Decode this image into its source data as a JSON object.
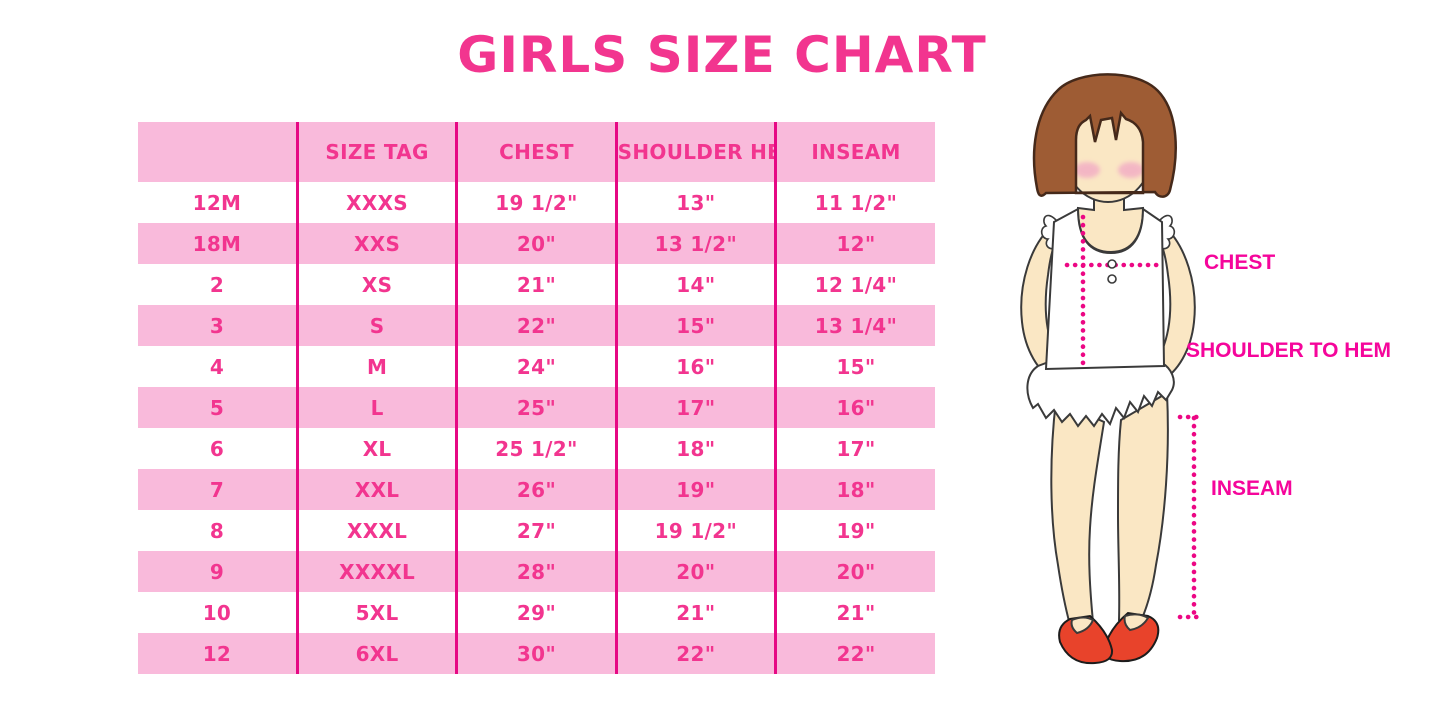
{
  "title": "GIRLS SIZE CHART",
  "chart_data": {
    "type": "table",
    "title": "GIRLS SIZE CHART",
    "columns": [
      "",
      "SIZE TAG",
      "CHEST",
      "SHOULDER HEM",
      "INSEAM"
    ],
    "rows": [
      [
        "12M",
        "XXXS",
        "19 1/2\"",
        "13\"",
        "11 1/2\""
      ],
      [
        "18M",
        "XXS",
        "20\"",
        "13 1/2\"",
        "12\""
      ],
      [
        "2",
        "XS",
        "21\"",
        "14\"",
        "12 1/4\""
      ],
      [
        "3",
        "S",
        "22\"",
        "15\"",
        "13 1/4\""
      ],
      [
        "4",
        "M",
        "24\"",
        "16\"",
        "15\""
      ],
      [
        "5",
        "L",
        "25\"",
        "17\"",
        "16\""
      ],
      [
        "6",
        "XL",
        "25 1/2\"",
        "18\"",
        "17\""
      ],
      [
        "7",
        "XXL",
        "26\"",
        "19\"",
        "18\""
      ],
      [
        "8",
        "XXXL",
        "27\"",
        "19 1/2\"",
        "19\""
      ],
      [
        "9",
        "XXXXL",
        "28\"",
        "20\"",
        "20\""
      ],
      [
        "10",
        "5XL",
        "29\"",
        "21\"",
        "21\""
      ],
      [
        "12",
        "6XL",
        "30\"",
        "22\"",
        "22\""
      ]
    ],
    "layout_hints": {
      "header_background": "pink",
      "row_striping": "white and pink alternating",
      "column_dividers": "magenta vertical lines"
    }
  },
  "diagram": {
    "labels": {
      "chest": "CHEST",
      "shoulder_to_hem": "SHOULDER TO HEM",
      "inseam": "INSEAM"
    }
  },
  "colors": {
    "title_pink": "#F2358F",
    "row_pink": "#F9BADB",
    "divider_magenta": "#E60984",
    "table_text_pink": "#F2358F",
    "label_pink": "#F5059B",
    "dots_pink": "#EC0784",
    "hair_brown": "#9E5C34",
    "skin": "#FAE7C4",
    "blush": "#F2ABC5",
    "shoe_red": "#E8432B"
  }
}
